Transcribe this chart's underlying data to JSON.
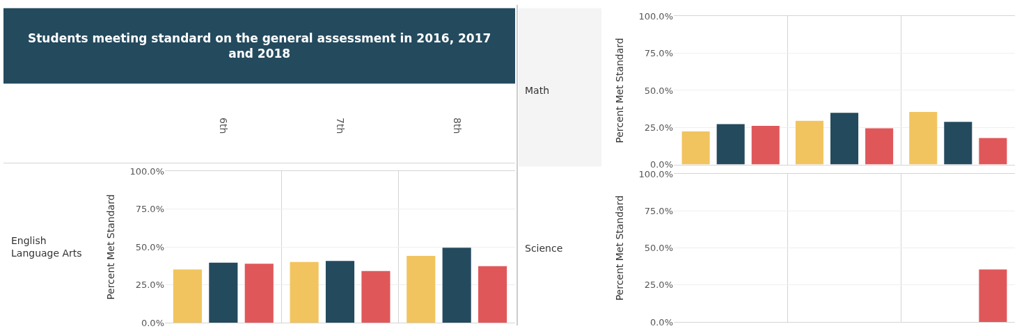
{
  "chart_data": [
    {
      "type": "bar",
      "title": "Students meeting standard on the general assessment in 2016, 2017 and 2018",
      "annotations": [
        "English Language Arts"
      ],
      "ylabel": "Percent Met Standard",
      "categories": [
        "6th",
        "7th",
        "8th"
      ],
      "series": [
        {
          "color": "#f1c45f",
          "values": [
            35.2,
            40.1,
            44.1
          ]
        },
        {
          "color": "#244a5e",
          "values": [
            39.6,
            40.8,
            49.5
          ]
        },
        {
          "color": "#e0575a",
          "values": [
            39.0,
            34.1,
            37.4
          ]
        }
      ],
      "ylim": [
        0,
        100
      ],
      "yticks": [
        {
          "value": 0,
          "label": "0.0%"
        },
        {
          "value": 25,
          "label": "25.0%"
        },
        {
          "value": 50,
          "label": "50.0%"
        },
        {
          "value": 75,
          "label": "75.0%"
        },
        {
          "value": 100,
          "label": "100.0%"
        }
      ],
      "grid": true
    },
    {
      "type": "bar",
      "annotations": [
        "Math"
      ],
      "ylabel": "Percent Met Standard",
      "categories": [
        null,
        null,
        null
      ],
      "series": [
        {
          "color": "#f1c45f",
          "values": [
            22.3,
            29.5,
            35.5
          ]
        },
        {
          "color": "#244a5e",
          "values": [
            27.2,
            34.9,
            28.8
          ]
        },
        {
          "color": "#e0575a",
          "values": [
            26.1,
            24.4,
            17.8
          ]
        }
      ],
      "ylim": [
        0,
        100
      ],
      "yticks": [
        {
          "value": 0,
          "label": "0.0%"
        },
        {
          "value": 25,
          "label": "25.0%"
        },
        {
          "value": 50,
          "label": "50.0%"
        },
        {
          "value": 75,
          "label": "75.0%"
        },
        {
          "value": 100,
          "label": "100.0%"
        }
      ],
      "grid": true
    },
    {
      "type": "bar",
      "annotations": [
        "Science"
      ],
      "ylabel": "Percent Met Standard",
      "categories": [
        null,
        null,
        null
      ],
      "series": [
        {
          "color": "#f1c45f",
          "values": [
            null,
            null,
            null
          ]
        },
        {
          "color": "#244a5e",
          "values": [
            null,
            null,
            null
          ]
        },
        {
          "color": "#e0575a",
          "values": [
            null,
            null,
            35.5
          ]
        }
      ],
      "ylim": [
        0,
        100
      ],
      "yticks": [
        {
          "value": 0,
          "label": "0.0%"
        },
        {
          "value": 25,
          "label": "25.0%"
        },
        {
          "value": 50,
          "label": "50.0%"
        },
        {
          "value": 75,
          "label": "75.0%"
        },
        {
          "value": 100,
          "label": "100.0%"
        }
      ],
      "grid": true
    }
  ]
}
